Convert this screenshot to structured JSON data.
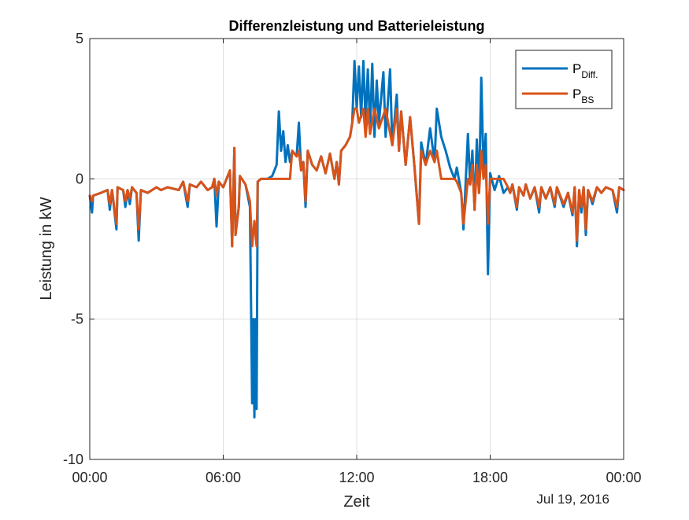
{
  "chart_data": {
    "type": "line",
    "title": "Differenzleistung und Batterieleistung",
    "xlabel": "Zeit",
    "ylabel": "Leistung in kW",
    "date_label": "Jul 19, 2016",
    "xlim": [
      "00:00",
      "00:00"
    ],
    "x_unit": "hours since 00:00 on Jul 19, 2016",
    "x_domain": [
      0,
      24
    ],
    "ylim": [
      -10,
      5
    ],
    "grid": true,
    "legend_position": "top-right",
    "x_ticks": [
      {
        "value": 0,
        "label": "00:00"
      },
      {
        "value": 6,
        "label": "06:00"
      },
      {
        "value": 12,
        "label": "12:00"
      },
      {
        "value": 18,
        "label": "18:00"
      },
      {
        "value": 24,
        "label": "00:00"
      }
    ],
    "y_ticks": [
      {
        "value": 5,
        "label": "5"
      },
      {
        "value": 0,
        "label": "0"
      },
      {
        "value": -5,
        "label": "-5"
      },
      {
        "value": -10,
        "label": "-10"
      }
    ],
    "series": [
      {
        "name": "P_Diff.",
        "legend_main": "P",
        "legend_sub": "Diff.",
        "color": "#0072BD",
        "points": [
          [
            0.0,
            -0.6
          ],
          [
            0.1,
            -1.2
          ],
          [
            0.15,
            -0.6
          ],
          [
            0.5,
            -0.5
          ],
          [
            0.8,
            -0.4
          ],
          [
            0.9,
            -1.1
          ],
          [
            1.0,
            -0.4
          ],
          [
            1.2,
            -1.8
          ],
          [
            1.25,
            -0.3
          ],
          [
            1.5,
            -0.4
          ],
          [
            1.6,
            -1.0
          ],
          [
            1.7,
            -0.4
          ],
          [
            1.8,
            -0.9
          ],
          [
            1.9,
            -0.3
          ],
          [
            2.1,
            -0.5
          ],
          [
            2.2,
            -2.2
          ],
          [
            2.3,
            -0.4
          ],
          [
            2.6,
            -0.5
          ],
          [
            3.0,
            -0.3
          ],
          [
            3.2,
            -0.4
          ],
          [
            3.5,
            -0.3
          ],
          [
            4.0,
            -0.4
          ],
          [
            4.2,
            -0.1
          ],
          [
            4.4,
            -1.0
          ],
          [
            4.5,
            -0.2
          ],
          [
            4.8,
            -0.3
          ],
          [
            5.0,
            -0.1
          ],
          [
            5.3,
            -0.4
          ],
          [
            5.5,
            -0.3
          ],
          [
            5.6,
            0.0
          ],
          [
            5.7,
            -1.7
          ],
          [
            5.8,
            -0.1
          ],
          [
            6.0,
            -0.3
          ],
          [
            6.3,
            0.3
          ],
          [
            6.4,
            -2.4
          ],
          [
            6.5,
            1.1
          ],
          [
            6.55,
            -2.0
          ],
          [
            6.7,
            -1.0
          ],
          [
            6.75,
            0.1
          ],
          [
            7.0,
            -0.2
          ],
          [
            7.2,
            -1.0
          ],
          [
            7.3,
            -8.0
          ],
          [
            7.35,
            -5.0
          ],
          [
            7.4,
            -8.5
          ],
          [
            7.45,
            -5.0
          ],
          [
            7.5,
            -8.2
          ],
          [
            7.55,
            -0.1
          ],
          [
            7.7,
            0.0
          ],
          [
            7.8,
            0.0
          ],
          [
            8.0,
            0.0
          ],
          [
            8.2,
            0.1
          ],
          [
            8.4,
            0.5
          ],
          [
            8.5,
            2.4
          ],
          [
            8.6,
            1.0
          ],
          [
            8.7,
            1.7
          ],
          [
            8.8,
            0.6
          ],
          [
            8.9,
            1.2
          ],
          [
            9.0,
            0.6
          ],
          [
            9.1,
            1.0
          ],
          [
            9.3,
            0.8
          ],
          [
            9.4,
            2.0
          ],
          [
            9.5,
            0.3
          ],
          [
            9.6,
            0.6
          ],
          [
            9.7,
            -1.0
          ],
          [
            9.8,
            1.0
          ],
          [
            10.0,
            0.5
          ],
          [
            10.2,
            0.3
          ],
          [
            10.4,
            0.8
          ],
          [
            10.6,
            0.2
          ],
          [
            10.8,
            0.9
          ],
          [
            11.0,
            0.0
          ],
          [
            11.1,
            0.6
          ],
          [
            11.2,
            -0.2
          ],
          [
            11.3,
            1.0
          ],
          [
            11.5,
            1.2
          ],
          [
            11.7,
            1.5
          ],
          [
            11.8,
            2.0
          ],
          [
            11.9,
            4.2
          ],
          [
            12.0,
            2.5
          ],
          [
            12.1,
            4.0
          ],
          [
            12.2,
            2.2
          ],
          [
            12.3,
            4.2
          ],
          [
            12.4,
            2.0
          ],
          [
            12.5,
            3.9
          ],
          [
            12.6,
            1.8
          ],
          [
            12.7,
            4.1
          ],
          [
            12.8,
            1.5
          ],
          [
            12.9,
            3.5
          ],
          [
            13.0,
            2.0
          ],
          [
            13.2,
            3.8
          ],
          [
            13.3,
            1.5
          ],
          [
            13.5,
            3.9
          ],
          [
            13.6,
            1.2
          ],
          [
            13.8,
            3.0
          ],
          [
            13.9,
            1.0
          ],
          [
            14.0,
            2.4
          ],
          [
            14.2,
            0.5
          ],
          [
            14.4,
            2.2
          ],
          [
            14.6,
            0.4
          ],
          [
            14.8,
            -1.6
          ],
          [
            14.9,
            1.3
          ],
          [
            15.1,
            0.5
          ],
          [
            15.3,
            1.8
          ],
          [
            15.5,
            0.6
          ],
          [
            15.6,
            2.5
          ],
          [
            15.8,
            1.5
          ],
          [
            16.0,
            1.0
          ],
          [
            16.2,
            0.4
          ],
          [
            16.4,
            0.0
          ],
          [
            16.5,
            0.4
          ],
          [
            16.7,
            -0.5
          ],
          [
            16.8,
            -1.8
          ],
          [
            17.0,
            1.6
          ],
          [
            17.1,
            -0.2
          ],
          [
            17.2,
            1.0
          ],
          [
            17.3,
            -1.1
          ],
          [
            17.4,
            1.4
          ],
          [
            17.5,
            -0.5
          ],
          [
            17.6,
            3.6
          ],
          [
            17.7,
            0.3
          ],
          [
            17.8,
            1.6
          ],
          [
            17.9,
            -3.4
          ],
          [
            18.0,
            0.2
          ],
          [
            18.2,
            -0.4
          ],
          [
            18.4,
            0.1
          ],
          [
            18.6,
            -0.5
          ],
          [
            18.8,
            -0.3
          ],
          [
            18.9,
            -0.5
          ],
          [
            19.0,
            -0.2
          ],
          [
            19.2,
            -1.1
          ],
          [
            19.3,
            -0.3
          ],
          [
            19.5,
            -0.6
          ],
          [
            19.6,
            -0.2
          ],
          [
            19.8,
            -0.7
          ],
          [
            20.0,
            -0.3
          ],
          [
            20.2,
            -1.2
          ],
          [
            20.3,
            -0.3
          ],
          [
            20.5,
            -0.7
          ],
          [
            20.7,
            -0.3
          ],
          [
            20.9,
            -1.0
          ],
          [
            21.0,
            -0.3
          ],
          [
            21.3,
            -1.0
          ],
          [
            21.5,
            -0.5
          ],
          [
            21.7,
            -1.3
          ],
          [
            21.8,
            -0.3
          ],
          [
            21.9,
            -2.4
          ],
          [
            22.0,
            -0.4
          ],
          [
            22.1,
            -1.2
          ],
          [
            22.2,
            -0.3
          ],
          [
            22.3,
            -2.0
          ],
          [
            22.4,
            -0.4
          ],
          [
            22.6,
            -0.9
          ],
          [
            22.8,
            -0.3
          ],
          [
            23.0,
            -0.5
          ],
          [
            23.2,
            -0.3
          ],
          [
            23.5,
            -0.4
          ],
          [
            23.7,
            -1.2
          ],
          [
            23.8,
            -0.3
          ],
          [
            24.0,
            -0.4
          ]
        ]
      },
      {
        "name": "P_BS",
        "legend_main": "P",
        "legend_sub": "BS",
        "color": "#D95319",
        "points": [
          [
            0.0,
            -0.6
          ],
          [
            0.1,
            -0.8
          ],
          [
            0.15,
            -0.6
          ],
          [
            0.5,
            -0.5
          ],
          [
            0.8,
            -0.4
          ],
          [
            0.9,
            -0.9
          ],
          [
            1.0,
            -0.4
          ],
          [
            1.2,
            -1.6
          ],
          [
            1.25,
            -0.3
          ],
          [
            1.5,
            -0.4
          ],
          [
            1.6,
            -0.8
          ],
          [
            1.7,
            -0.4
          ],
          [
            1.8,
            -0.7
          ],
          [
            1.9,
            -0.3
          ],
          [
            2.1,
            -0.5
          ],
          [
            2.2,
            -1.8
          ],
          [
            2.3,
            -0.4
          ],
          [
            2.6,
            -0.5
          ],
          [
            3.0,
            -0.3
          ],
          [
            3.2,
            -0.4
          ],
          [
            3.5,
            -0.3
          ],
          [
            4.0,
            -0.4
          ],
          [
            4.2,
            -0.1
          ],
          [
            4.4,
            -0.8
          ],
          [
            4.5,
            -0.2
          ],
          [
            4.8,
            -0.3
          ],
          [
            5.0,
            -0.1
          ],
          [
            5.3,
            -0.4
          ],
          [
            5.5,
            -0.3
          ],
          [
            5.6,
            0.0
          ],
          [
            5.7,
            -0.6
          ],
          [
            5.8,
            -0.1
          ],
          [
            6.0,
            -0.3
          ],
          [
            6.3,
            0.3
          ],
          [
            6.4,
            -2.4
          ],
          [
            6.5,
            1.1
          ],
          [
            6.55,
            -2.0
          ],
          [
            6.7,
            -1.0
          ],
          [
            6.75,
            0.1
          ],
          [
            7.0,
            -0.2
          ],
          [
            7.2,
            -0.8
          ],
          [
            7.3,
            -2.4
          ],
          [
            7.4,
            -1.5
          ],
          [
            7.5,
            -2.4
          ],
          [
            7.55,
            -0.1
          ],
          [
            7.7,
            0.0
          ],
          [
            8.0,
            0.0
          ],
          [
            9.0,
            0.0
          ],
          [
            9.1,
            1.0
          ],
          [
            9.3,
            0.8
          ],
          [
            9.4,
            1.0
          ],
          [
            9.5,
            0.3
          ],
          [
            9.6,
            0.6
          ],
          [
            9.7,
            -0.8
          ],
          [
            9.8,
            1.0
          ],
          [
            10.0,
            0.5
          ],
          [
            10.2,
            0.3
          ],
          [
            10.4,
            0.8
          ],
          [
            10.6,
            0.2
          ],
          [
            10.8,
            0.9
          ],
          [
            11.0,
            0.0
          ],
          [
            11.1,
            0.6
          ],
          [
            11.2,
            -0.2
          ],
          [
            11.3,
            1.0
          ],
          [
            11.5,
            1.2
          ],
          [
            11.7,
            1.5
          ],
          [
            11.8,
            2.0
          ],
          [
            11.9,
            2.5
          ],
          [
            12.0,
            2.5
          ],
          [
            12.1,
            2.0
          ],
          [
            12.3,
            2.5
          ],
          [
            12.4,
            1.5
          ],
          [
            12.5,
            2.5
          ],
          [
            12.6,
            1.6
          ],
          [
            12.8,
            2.5
          ],
          [
            13.0,
            1.8
          ],
          [
            13.3,
            2.5
          ],
          [
            13.6,
            1.2
          ],
          [
            13.8,
            2.5
          ],
          [
            13.9,
            1.0
          ],
          [
            14.0,
            2.4
          ],
          [
            14.2,
            0.5
          ],
          [
            14.4,
            2.2
          ],
          [
            14.6,
            0.4
          ],
          [
            14.8,
            -1.6
          ],
          [
            14.9,
            1.0
          ],
          [
            15.1,
            0.5
          ],
          [
            15.3,
            1.0
          ],
          [
            15.5,
            0.6
          ],
          [
            15.6,
            1.0
          ],
          [
            15.8,
            0.0
          ],
          [
            16.0,
            0.0
          ],
          [
            16.4,
            0.0
          ],
          [
            16.5,
            -0.1
          ],
          [
            16.7,
            -0.5
          ],
          [
            16.8,
            -1.6
          ],
          [
            17.0,
            0.0
          ],
          [
            17.1,
            -0.2
          ],
          [
            17.2,
            0.5
          ],
          [
            17.3,
            -1.1
          ],
          [
            17.4,
            0.5
          ],
          [
            17.5,
            -0.5
          ],
          [
            17.6,
            1.0
          ],
          [
            17.7,
            0.0
          ],
          [
            17.8,
            0.5
          ],
          [
            17.9,
            -1.6
          ],
          [
            18.0,
            0.0
          ],
          [
            18.2,
            0.0
          ],
          [
            18.6,
            0.0
          ],
          [
            18.8,
            -0.3
          ],
          [
            18.9,
            -0.5
          ],
          [
            19.0,
            -0.2
          ],
          [
            19.2,
            -1.0
          ],
          [
            19.3,
            -0.3
          ],
          [
            19.5,
            -0.6
          ],
          [
            19.6,
            -0.2
          ],
          [
            19.8,
            -0.7
          ],
          [
            20.0,
            -0.3
          ],
          [
            20.2,
            -1.0
          ],
          [
            20.3,
            -0.3
          ],
          [
            20.5,
            -0.7
          ],
          [
            20.7,
            -0.3
          ],
          [
            20.9,
            -0.9
          ],
          [
            21.0,
            -0.3
          ],
          [
            21.3,
            -0.9
          ],
          [
            21.5,
            -0.5
          ],
          [
            21.7,
            -1.2
          ],
          [
            21.8,
            -0.3
          ],
          [
            21.9,
            -2.2
          ],
          [
            22.0,
            -0.4
          ],
          [
            22.1,
            -1.0
          ],
          [
            22.2,
            -0.3
          ],
          [
            22.3,
            -1.8
          ],
          [
            22.4,
            -0.4
          ],
          [
            22.6,
            -0.8
          ],
          [
            22.8,
            -0.3
          ],
          [
            23.0,
            -0.5
          ],
          [
            23.2,
            -0.3
          ],
          [
            23.5,
            -0.4
          ],
          [
            23.7,
            -1.0
          ],
          [
            23.8,
            -0.3
          ],
          [
            24.0,
            -0.4
          ]
        ]
      }
    ]
  }
}
